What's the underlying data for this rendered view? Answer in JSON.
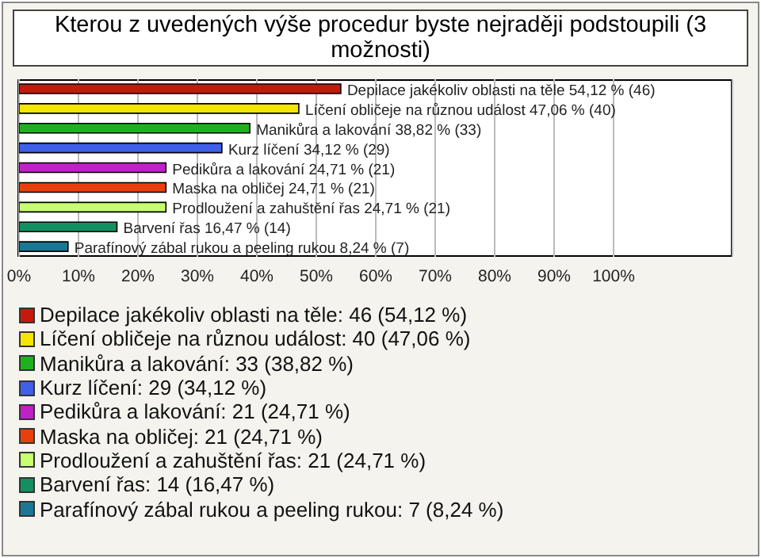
{
  "chart_data": {
    "type": "bar",
    "orientation": "horizontal",
    "title": "Kterou z uvedených výše procedur byste nejraději podstoupili (3 možnosti)",
    "categories": [
      "Depilace jakékoliv oblasti na těle",
      "Líčení obličeje na různou událost",
      "Manikůra a lakování",
      "Kurz líčení",
      "Pedikůra a lakování",
      "Maska na obličej",
      "Prodloužení a zahuštění řas",
      "Barvení řas",
      "Parafínový zábal rukou a peeling rukou"
    ],
    "values": [
      54.12,
      47.06,
      38.82,
      34.12,
      24.71,
      24.71,
      24.71,
      16.47,
      8.24
    ],
    "colors": [
      "#c41a0c",
      "#f5e600",
      "#1fb01f",
      "#4060e8",
      "#c020c8",
      "#e8400c",
      "#c8ff70",
      "#139060",
      "#1a7894"
    ],
    "value_labels": [
      "54,12 % (46)",
      "47,06 % (40)",
      "38,82 % (33)",
      "34,12 % (29)",
      "24,71 % (21)",
      "24,71 % (21)",
      "24,71 % (21)",
      "16,47 % (14)",
      "8,24 % (7)"
    ],
    "annotations": [
      "Depilace jakékoliv oblasti na těle: 46 (54,12 %)",
      "Líčení obličeje na různou událost: 40 (47,06 %)",
      "Manikůra a lakování: 33 (38,82 %)",
      "Kurz líčení: 29 (34,12 %)",
      "Pedikůra a lakování: 21 (24,71 %)",
      "Maska na obličej: 21 (24,71 %)",
      "Prodloužení a zahuštění řas: 21 (24,71 %)",
      "Barvení řas: 14 (16,47 %)",
      "Parafínový zábal rukou a peeling rukou: 7 (8,24 %)"
    ],
    "xlim": [
      0,
      120
    ],
    "xticks": [
      {
        "value": 0,
        "label": "0%"
      },
      {
        "value": 10,
        "label": "10%"
      },
      {
        "value": 20,
        "label": "20%"
      },
      {
        "value": 30,
        "label": "30%"
      },
      {
        "value": 40,
        "label": "40%"
      },
      {
        "value": 50,
        "label": "50%"
      },
      {
        "value": 60,
        "label": "60%"
      },
      {
        "value": 70,
        "label": "70%"
      },
      {
        "value": 80,
        "label": "80%"
      },
      {
        "value": 90,
        "label": "90%"
      },
      {
        "value": 100,
        "label": "100%"
      }
    ],
    "grid": "x",
    "tick_labels": "x"
  }
}
